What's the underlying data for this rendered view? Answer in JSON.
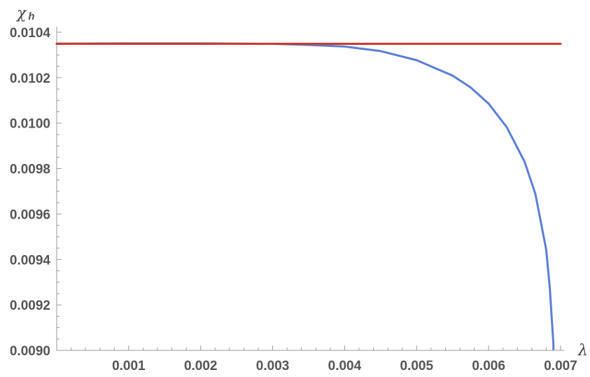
{
  "chart_data": {
    "type": "line",
    "xlabel": "λ",
    "ylabel": "χ",
    "ylabel_subscript": "h",
    "xlim": [
      0,
      0.007
    ],
    "ylim": [
      0.009,
      0.0104
    ],
    "x_ticks": [
      "0.001",
      "0.002",
      "0.003",
      "0.004",
      "0.005",
      "0.006",
      "0.007"
    ],
    "y_ticks": [
      "0.0090",
      "0.0092",
      "0.0094",
      "0.0096",
      "0.0098",
      "0.0100",
      "0.0102",
      "0.0104"
    ],
    "grid": false,
    "series": [
      {
        "color": "#5a7fd6",
        "x": [
          0,
          0.001,
          0.002,
          0.0025,
          0.003,
          0.0035,
          0.004,
          0.0045,
          0.005,
          0.0055,
          0.00575,
          0.006,
          0.00625,
          0.0065,
          0.00665,
          0.0068,
          0.00685,
          0.00688,
          0.0069,
          0.0069
        ],
        "y": [
          0.01035,
          0.010351,
          0.010351,
          0.01035,
          0.010349,
          0.010344,
          0.010337,
          0.010317,
          0.010277,
          0.010209,
          0.010157,
          0.010086,
          0.009983,
          0.00983,
          0.009688,
          0.009443,
          0.009275,
          0.009125,
          0.00903,
          0.009005
        ]
      },
      {
        "color": "#cc3b2b",
        "x": [
          0,
          0.007
        ],
        "y": [
          0.010349,
          0.010349
        ]
      }
    ]
  }
}
